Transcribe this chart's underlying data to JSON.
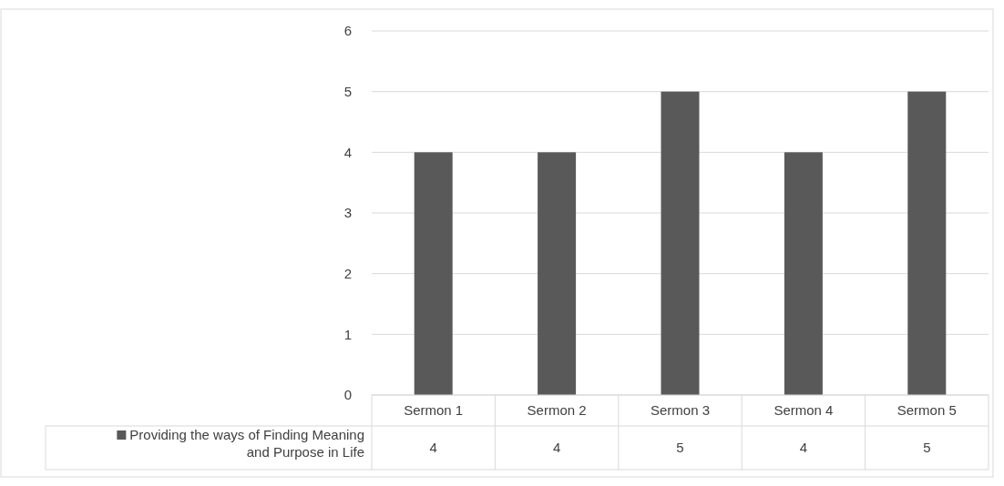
{
  "chart_data": {
    "type": "bar",
    "categories": [
      "Sermon 1",
      "Sermon 2",
      "Sermon 3",
      "Sermon 4",
      "Sermon 5"
    ],
    "series": [
      {
        "name": "Providing the ways of Finding Meaning and Purpose in Life",
        "color": "#595959",
        "values": [
          4,
          4,
          5,
          4,
          5
        ]
      }
    ],
    "ylim": [
      0,
      6
    ],
    "yticks": [
      0,
      1,
      2,
      3,
      4,
      5,
      6
    ],
    "grid": "y",
    "legend": "left",
    "data_labels": true
  }
}
